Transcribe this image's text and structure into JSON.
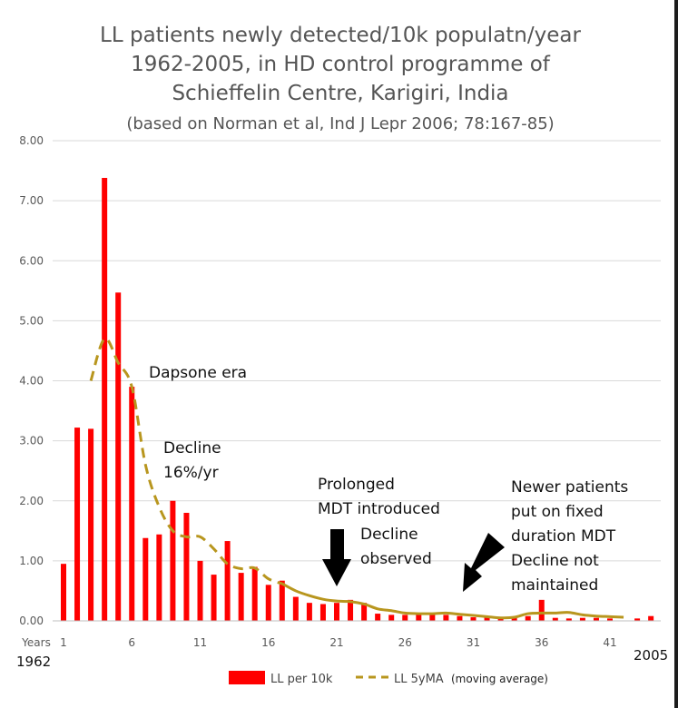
{
  "chart_data": {
    "type": "bar",
    "title_lines": [
      "LL patients newly detected/10k populatn/year",
      "1962-2005, in HD control programme of",
      "Schieffelin Centre, Karigiri, India"
    ],
    "subtitle": "(based on Norman et al, Ind J Lepr 2006; 78:167-85)",
    "ylim": [
      0,
      8
    ],
    "yticks": [
      "0.00",
      "1.00",
      "2.00",
      "3.00",
      "4.00",
      "5.00",
      "6.00",
      "7.00",
      "8.00"
    ],
    "xtick_labels": [
      "1",
      "6",
      "11",
      "16",
      "21",
      "26",
      "31",
      "36",
      "41"
    ],
    "x_axis_prefix": "Years",
    "start_year_label": "1962",
    "end_year_label": "2005",
    "categories": [
      1,
      2,
      3,
      4,
      5,
      6,
      7,
      8,
      9,
      10,
      11,
      12,
      13,
      14,
      15,
      16,
      17,
      18,
      19,
      20,
      21,
      22,
      23,
      24,
      25,
      26,
      27,
      28,
      29,
      30,
      31,
      32,
      33,
      34,
      35,
      36,
      37,
      38,
      39,
      40,
      41,
      42,
      43,
      44
    ],
    "series": [
      {
        "name": "LL per 10k",
        "type": "bar",
        "color": "#ff0000",
        "values": [
          0.95,
          3.22,
          3.2,
          7.38,
          5.47,
          3.9,
          1.38,
          1.44,
          2.0,
          1.8,
          1.0,
          0.77,
          1.33,
          0.8,
          0.9,
          0.6,
          0.67,
          0.4,
          0.3,
          0.28,
          0.3,
          0.35,
          0.3,
          0.12,
          0.1,
          0.1,
          0.1,
          0.12,
          0.1,
          0.08,
          0.06,
          0.06,
          0.04,
          0.05,
          0.08,
          0.35,
          0.05,
          0.04,
          0.05,
          0.05,
          0.04,
          0.0,
          0.04,
          0.08
        ]
      },
      {
        "name": "LL 5yMA",
        "type": "line",
        "color": "#b8961e",
        "dashed_until_index": 16,
        "values": [
          null,
          null,
          4.0,
          4.7,
          4.3,
          3.9,
          2.6,
          1.9,
          1.5,
          1.4,
          1.4,
          1.2,
          0.95,
          0.87,
          0.88,
          0.7,
          0.62,
          0.5,
          0.42,
          0.36,
          0.33,
          0.32,
          0.28,
          0.2,
          0.17,
          0.13,
          0.12,
          0.12,
          0.13,
          0.11,
          0.09,
          0.07,
          0.05,
          0.06,
          0.12,
          0.13,
          0.13,
          0.14,
          0.1,
          0.08,
          0.07,
          0.06,
          null,
          null
        ]
      }
    ],
    "legend": [
      {
        "label": "LL per 10k",
        "color": "#ff0000"
      },
      {
        "label": "LL 5yMA",
        "note": "(moving average)",
        "color": "#b8961e"
      }
    ],
    "annotations": [
      {
        "lines": [
          "Dapsone era"
        ]
      },
      {
        "lines": [
          "Decline",
          "16%/yr"
        ]
      },
      {
        "lines": [
          "Prolonged",
          "MDT introduced"
        ]
      },
      {
        "lines": [
          "Decline",
          "observed"
        ]
      },
      {
        "lines": [
          "Newer patients",
          "put on fixed",
          "duration MDT",
          "Decline not",
          "maintained"
        ]
      }
    ]
  }
}
